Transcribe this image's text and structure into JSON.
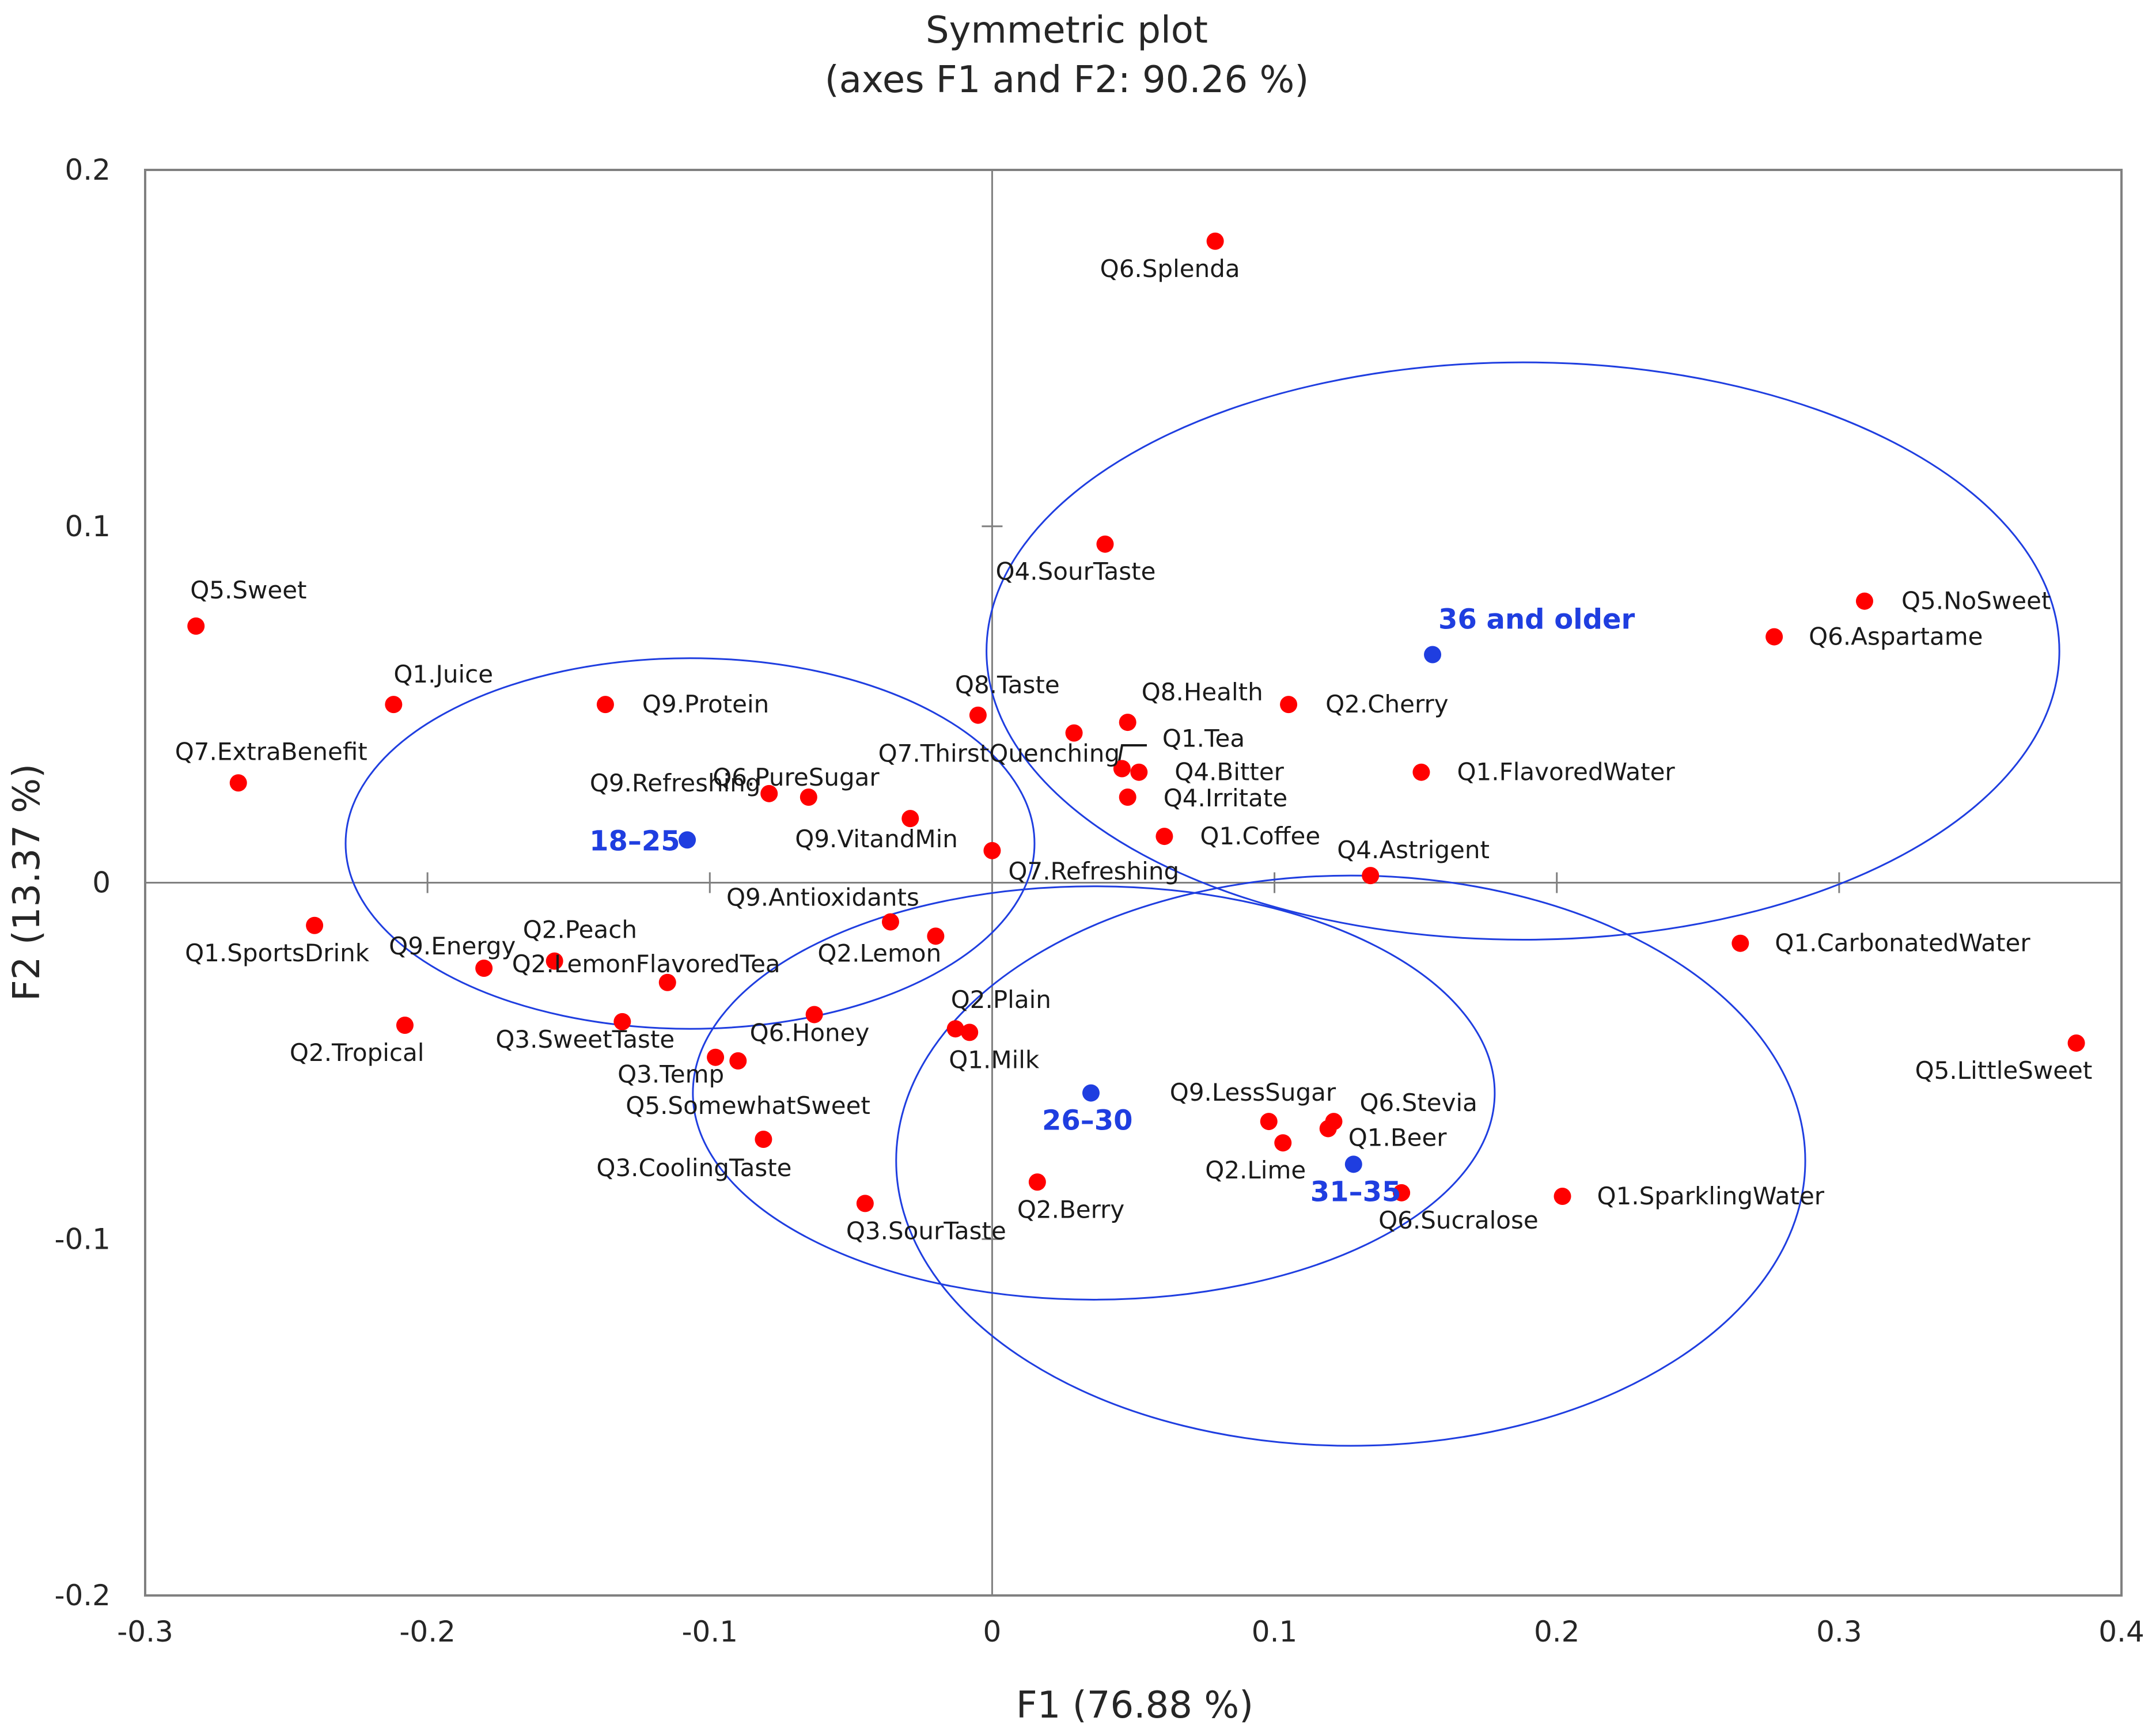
{
  "chart_data": {
    "type": "scatter",
    "title": "Symmetric plot",
    "subtitle": "(axes F1 and F2: 90.26 %)",
    "xlabel": "F1 (76.88 %)",
    "ylabel": "F2 (13.37 %)",
    "xlim": [
      -0.3,
      0.4
    ],
    "ylim": [
      -0.2,
      0.2
    ],
    "xticks": [
      "-0.3",
      "-0.2",
      "-0.1",
      "0",
      "0.1",
      "0.2",
      "0.3",
      "0.4"
    ],
    "yticks": [
      "-0.2",
      "-0.1",
      "0",
      "0.1",
      "0.2"
    ],
    "grid": false,
    "colors": {
      "variables": "#ff0000",
      "groups": "#1f3ee0",
      "axes": "#808080",
      "ellipse": "#1f3ee0"
    },
    "series": [
      {
        "name": "Variables",
        "color": "#ff0000",
        "points": [
          {
            "label": "Q5.Sweet",
            "x": -0.282,
            "y": 0.072
          },
          {
            "label": "Q1.Juice",
            "x": -0.212,
            "y": 0.05
          },
          {
            "label": "Q7.ExtraBenefit",
            "x": -0.267,
            "y": 0.028
          },
          {
            "label": "Q9.Protein",
            "x": -0.137,
            "y": 0.05
          },
          {
            "label": "Q6.PureSugar",
            "x": -0.079,
            "y": 0.025
          },
          {
            "label": "Q9.Refreshing",
            "x": -0.065,
            "y": 0.024
          },
          {
            "label": "Q9.VitandMin",
            "x": -0.029,
            "y": 0.018
          },
          {
            "label": "Q8.Taste",
            "x": -0.005,
            "y": 0.047
          },
          {
            "label": "Q7.ThirstQuenching",
            "x": 0.029,
            "y": 0.042
          },
          {
            "label": "Q8.Health",
            "x": 0.048,
            "y": 0.045
          },
          {
            "label": "Q1.Tea",
            "x": 0.046,
            "y": 0.032
          },
          {
            "label": "Q4.Bitter",
            "x": 0.052,
            "y": 0.031
          },
          {
            "label": "Q4.Irritate",
            "x": 0.048,
            "y": 0.024
          },
          {
            "label": "Q1.Coffee",
            "x": 0.061,
            "y": 0.013
          },
          {
            "label": "Q7.Refreshing",
            "x": 0.0,
            "y": 0.009
          },
          {
            "label": "Q2.Cherry",
            "x": 0.105,
            "y": 0.05
          },
          {
            "label": "Q1.FlavoredWater",
            "x": 0.152,
            "y": 0.031
          },
          {
            "label": "Q4.Astrigent",
            "x": 0.134,
            "y": 0.002
          },
          {
            "label": "Q6.Splenda",
            "x": 0.079,
            "y": 0.18
          },
          {
            "label": "Q4.SourTaste",
            "x": 0.04,
            "y": 0.095
          },
          {
            "label": "Q5.NoSweet",
            "x": 0.309,
            "y": 0.079
          },
          {
            "label": "Q6.Aspartame",
            "x": 0.277,
            "y": 0.069
          },
          {
            "label": "Q1.CarbonatedWater",
            "x": 0.265,
            "y": -0.017
          },
          {
            "label": "Q5.LittleSweet",
            "x": 0.384,
            "y": -0.045
          },
          {
            "label": "Q1.SportsDrink",
            "x": -0.24,
            "y": -0.012
          },
          {
            "label": "Q9.Energy",
            "x": -0.18,
            "y": -0.024
          },
          {
            "label": "Q2.Peach",
            "x": -0.155,
            "y": -0.022
          },
          {
            "label": "Q2.LemonFlavoredTea",
            "x": -0.115,
            "y": -0.028
          },
          {
            "label": "Q2.Tropical",
            "x": -0.208,
            "y": -0.04
          },
          {
            "label": "Q3.SweetTaste",
            "x": -0.131,
            "y": -0.039
          },
          {
            "label": "Q9.Antioxidants",
            "x": -0.036,
            "y": -0.011
          },
          {
            "label": "Q2.Lemon",
            "x": -0.02,
            "y": -0.015
          },
          {
            "label": "Q6.Honey",
            "x": -0.063,
            "y": -0.037
          },
          {
            "label": "Q3.Temp",
            "x": -0.098,
            "y": -0.049
          },
          {
            "label": "Q5.SomewhatSweet",
            "x": -0.09,
            "y": -0.05
          },
          {
            "label": "Q3.CoolingTaste",
            "x": -0.081,
            "y": -0.072
          },
          {
            "label": "Q2.Plain",
            "x": -0.013,
            "y": -0.041
          },
          {
            "label": "Q1.Milk",
            "x": -0.008,
            "y": -0.042
          },
          {
            "label": "Q3.SourTaste",
            "x": -0.045,
            "y": -0.09
          },
          {
            "label": "Q2.Berry",
            "x": 0.016,
            "y": -0.084
          },
          {
            "label": "Q9.LessSugar",
            "x": 0.098,
            "y": -0.067
          },
          {
            "label": "Q2.Lime",
            "x": 0.103,
            "y": -0.073
          },
          {
            "label": "Q6.Stevia",
            "x": 0.121,
            "y": -0.067
          },
          {
            "label": "Q1.Beer",
            "x": 0.119,
            "y": -0.069
          },
          {
            "label": "Q6.Sucralose",
            "x": 0.145,
            "y": -0.087
          },
          {
            "label": "Q1.SparklingWater",
            "x": 0.202,
            "y": -0.088
          }
        ]
      },
      {
        "name": "Age groups",
        "color": "#1f3ee0",
        "points": [
          {
            "label": "18–25",
            "x": -0.108,
            "y": 0.012
          },
          {
            "label": "26–30",
            "x": 0.035,
            "y": -0.059
          },
          {
            "label": "31–35",
            "x": 0.128,
            "y": -0.079
          },
          {
            "label": "36 and older",
            "x": 0.156,
            "y": 0.064
          }
        ]
      }
    ],
    "ellipses": [
      {
        "group": "18–25",
        "cx": -0.107,
        "cy": 0.011,
        "rx": 0.122,
        "ry": 0.052
      },
      {
        "group": "26–30",
        "cx": 0.036,
        "cy": -0.059,
        "rx": 0.142,
        "ry": 0.058
      },
      {
        "group": "31–35",
        "cx": 0.127,
        "cy": -0.078,
        "rx": 0.161,
        "ry": 0.08
      },
      {
        "group": "36 and older",
        "cx": 0.188,
        "cy": 0.065,
        "rx": 0.19,
        "ry": 0.081
      }
    ]
  }
}
